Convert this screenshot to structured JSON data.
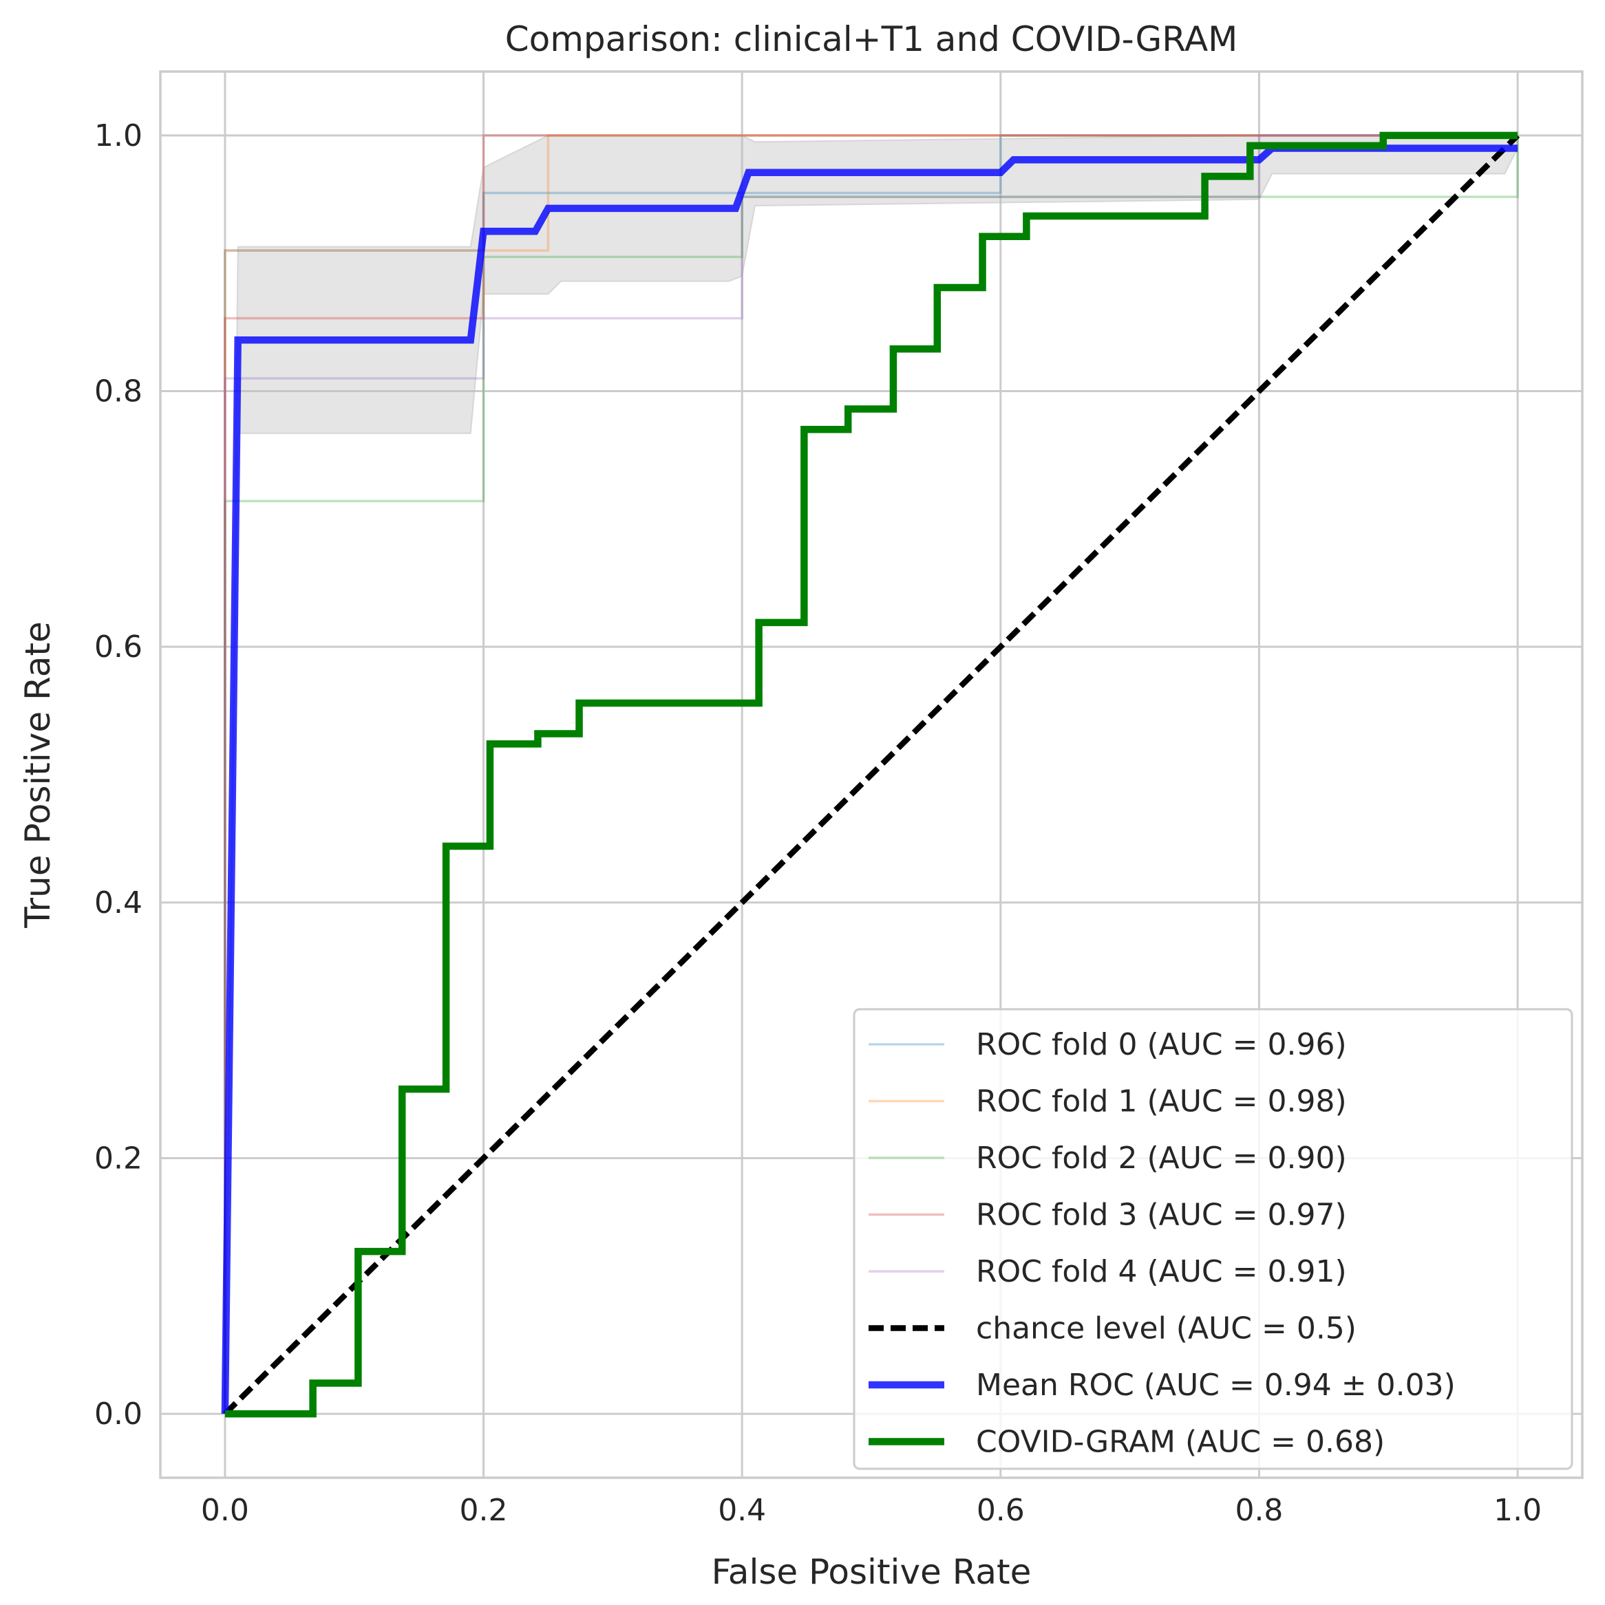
{
  "chart_data": {
    "type": "line",
    "title": "Comparison: clinical+T1 and COVID-GRAM",
    "xlabel": "False Positive Rate",
    "ylabel": "True Positive Rate",
    "xlim": [
      -0.05,
      1.05
    ],
    "ylim": [
      -0.05,
      1.05
    ],
    "xticks": [
      "0.0",
      "0.2",
      "0.4",
      "0.6",
      "0.8",
      "1.0"
    ],
    "yticks": [
      "0.0",
      "0.2",
      "0.4",
      "0.6",
      "0.8",
      "1.0"
    ],
    "grid": true,
    "legend_position": "lower-right",
    "std_band": {
      "upper_x": [
        0.0,
        0.01,
        0.19,
        0.2,
        0.25,
        0.4,
        0.41,
        0.8,
        1.0
      ],
      "upper_y": [
        0.0,
        0.913,
        0.913,
        0.975,
        1.0,
        1.0,
        0.995,
        1.0,
        1.0
      ],
      "lower_x": [
        0.0,
        0.01,
        0.19,
        0.2,
        0.25,
        0.26,
        0.39,
        0.4,
        0.41,
        0.8,
        0.81,
        0.99,
        1.0
      ],
      "lower_y": [
        0.0,
        0.767,
        0.767,
        0.876,
        0.876,
        0.886,
        0.886,
        0.89,
        0.945,
        0.95,
        0.97,
        0.97,
        0.99
      ],
      "color": "#bdbdbd"
    },
    "series": [
      {
        "name": "ROC fold 0 (AUC = 0.96)",
        "color": "#1f77b4",
        "opacity": 0.3,
        "width": 1.5,
        "x": [
          0.0,
          0.0,
          0.2,
          0.2,
          0.6,
          0.6,
          1.0
        ],
        "y": [
          0.0,
          0.91,
          0.91,
          0.955,
          0.955,
          1.0,
          1.0
        ]
      },
      {
        "name": "ROC fold 1 (AUC = 0.98)",
        "color": "#ff7f0e",
        "opacity": 0.3,
        "width": 1.5,
        "x": [
          0.0,
          0.0,
          0.25,
          0.25,
          1.0
        ],
        "y": [
          0.0,
          0.91,
          0.91,
          1.0,
          1.0
        ]
      },
      {
        "name": "ROC fold 2 (AUC = 0.90)",
        "color": "#2ca02c",
        "opacity": 0.3,
        "width": 1.5,
        "x": [
          0.0,
          0.0,
          0.2,
          0.2,
          0.4,
          0.4,
          1.0,
          1.0
        ],
        "y": [
          0.0,
          0.714,
          0.714,
          0.905,
          0.905,
          0.952,
          0.952,
          1.0
        ]
      },
      {
        "name": "ROC fold 3 (AUC = 0.97)",
        "color": "#d62728",
        "opacity": 0.3,
        "width": 1.5,
        "x": [
          0.0,
          0.0,
          0.2,
          0.2,
          1.0
        ],
        "y": [
          0.0,
          0.857,
          0.857,
          1.0,
          1.0
        ]
      },
      {
        "name": "ROC fold 4 (AUC = 0.91)",
        "color": "#9467bd",
        "opacity": 0.3,
        "width": 1.5,
        "x": [
          0.0,
          0.0,
          0.2,
          0.2,
          0.4,
          0.4,
          0.6,
          0.6,
          0.8,
          0.8,
          1.0
        ],
        "y": [
          0.0,
          0.81,
          0.81,
          0.857,
          0.857,
          0.952,
          0.952,
          0.952,
          0.952,
          1.0,
          1.0
        ]
      },
      {
        "name": "chance level (AUC = 0.5)",
        "color": "#000000",
        "opacity": 1.0,
        "width": 2,
        "dash": true,
        "x": [
          0.0,
          1.0
        ],
        "y": [
          0.0,
          1.0
        ]
      },
      {
        "name": "Mean ROC (AUC = 0.94 ± 0.03)",
        "color": "#0000ff",
        "opacity": 0.8,
        "width": 2.5,
        "x": [
          0.0,
          0.01,
          0.19,
          0.2,
          0.24,
          0.25,
          0.395,
          0.405,
          0.6,
          0.61,
          0.8,
          0.81,
          1.0
        ],
        "y": [
          0.0,
          0.84,
          0.84,
          0.925,
          0.925,
          0.943,
          0.943,
          0.971,
          0.971,
          0.981,
          0.981,
          0.99,
          0.99
        ]
      },
      {
        "name": "COVID-GRAM (AUC = 0.68)",
        "color": "#008000",
        "opacity": 1.0,
        "width": 2.5,
        "x": [
          0.0,
          0.068,
          0.068,
          0.103,
          0.103,
          0.137,
          0.137,
          0.171,
          0.171,
          0.205,
          0.205,
          0.242,
          0.242,
          0.274,
          0.274,
          0.413,
          0.413,
          0.448,
          0.448,
          0.482,
          0.482,
          0.517,
          0.517,
          0.551,
          0.551,
          0.586,
          0.586,
          0.62,
          0.62,
          0.758,
          0.758,
          0.793,
          0.793,
          0.896,
          0.896,
          1.0
        ],
        "y": [
          0.0,
          0.0,
          0.024,
          0.024,
          0.127,
          0.127,
          0.254,
          0.254,
          0.444,
          0.444,
          0.524,
          0.524,
          0.532,
          0.532,
          0.556,
          0.556,
          0.619,
          0.619,
          0.77,
          0.77,
          0.786,
          0.786,
          0.833,
          0.833,
          0.881,
          0.881,
          0.921,
          0.921,
          0.937,
          0.937,
          0.968,
          0.968,
          0.992,
          0.992,
          1.0,
          1.0
        ]
      }
    ]
  }
}
